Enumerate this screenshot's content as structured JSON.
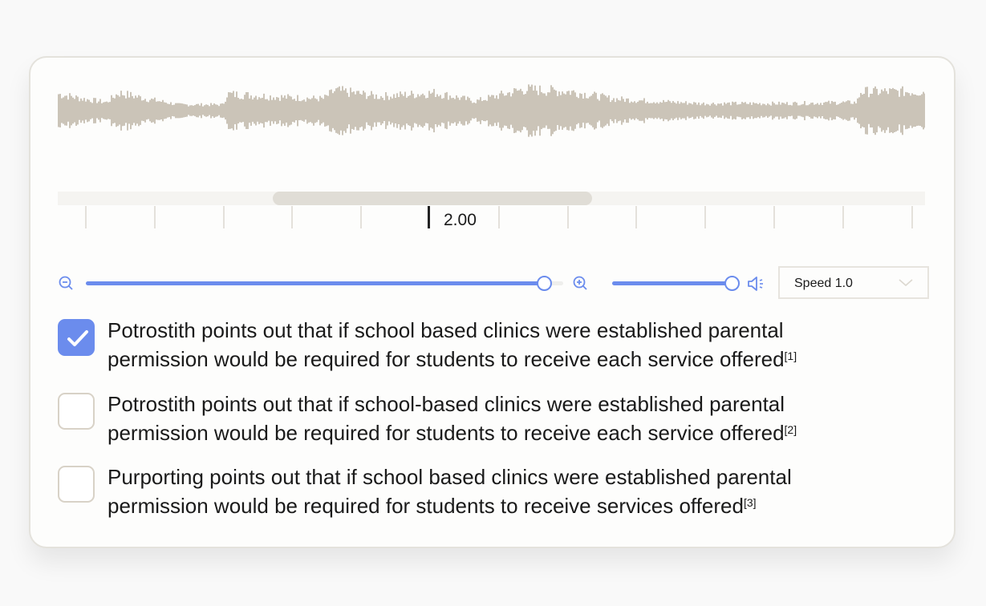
{
  "waveform": {
    "color": "#cbc4b8"
  },
  "timeline": {
    "current_time": "2.00",
    "scroll_position_percent": 25
  },
  "zoom_slider": {
    "value_percent": 96,
    "zoom_out_icon": "zoom-out-icon",
    "zoom_in_icon": "zoom-in-icon"
  },
  "volume_slider": {
    "value_percent": 100,
    "icon": "speaker-icon"
  },
  "speed_select": {
    "label": "Speed 1.0"
  },
  "accent_color": "#6b8ced",
  "options": [
    {
      "text": "Potrostith points out that if school based clinics were established parental",
      "text2": "permission would be required for students to receive each service offered",
      "ref": "[1]",
      "checked": true
    },
    {
      "text": "Potrostith points out that if school-based clinics were established parental",
      "text2": "permission would be required for students to receive each service offered",
      "ref": "[2]",
      "checked": false
    },
    {
      "text": "Purporting points out that if school based clinics were established parental",
      "text2": "permission would be required for students to receive services offered",
      "ref": "[3]",
      "checked": false
    }
  ]
}
